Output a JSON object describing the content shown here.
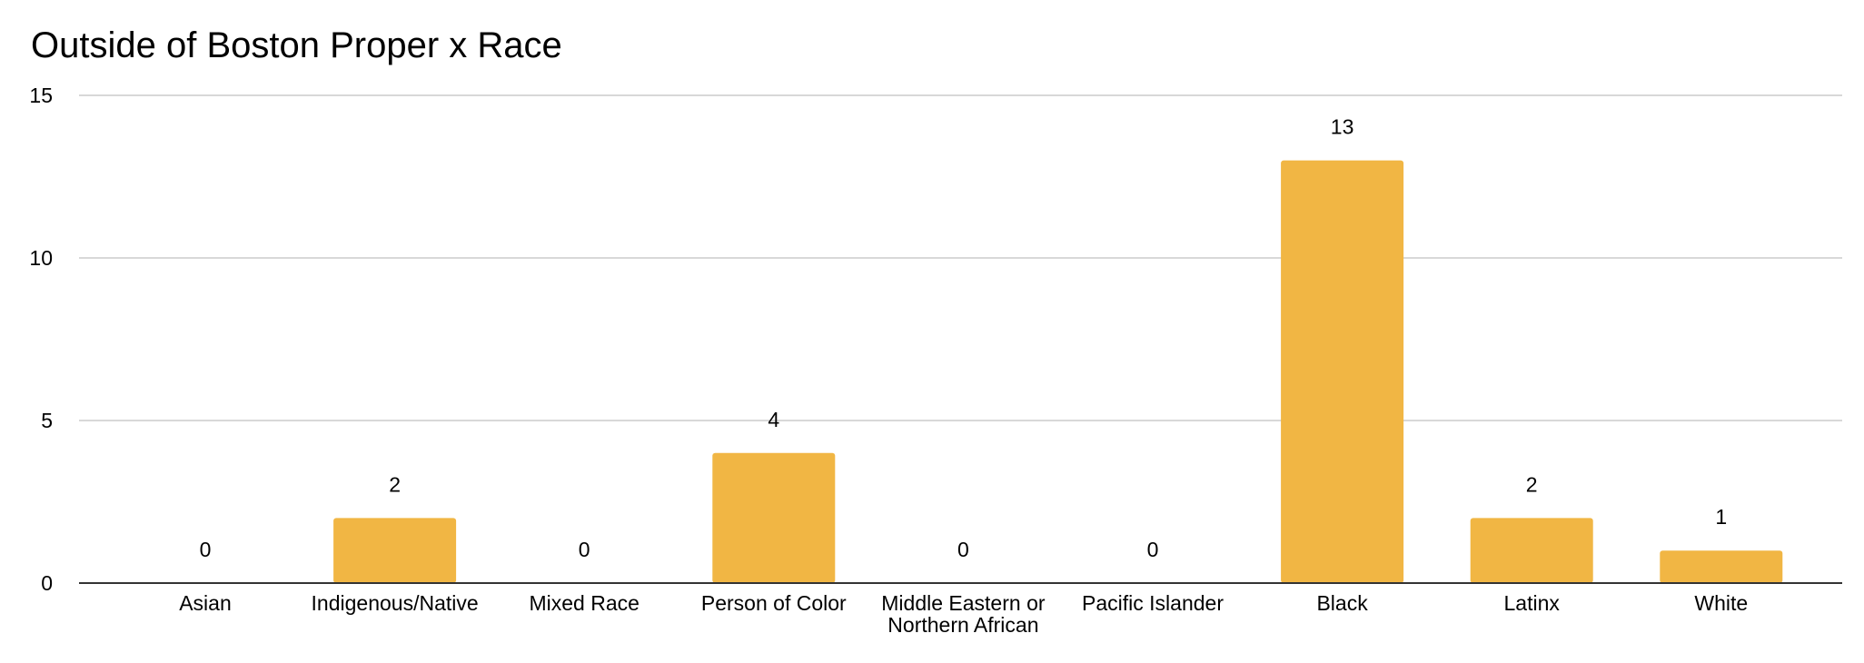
{
  "chart_data": {
    "type": "bar",
    "title": "Outside of Boston Proper x Race",
    "xlabel": "",
    "ylabel": "",
    "categories": [
      "Asian",
      "Indigenous/Native",
      "Mixed Race",
      "Person of Color",
      "Middle Eastern or Northern African",
      "Pacific Islander",
      "Black",
      "Latinx",
      "White"
    ],
    "category_label_lines": [
      [
        "Asian"
      ],
      [
        "Indigenous/Native"
      ],
      [
        "Mixed Race"
      ],
      [
        "Person of Color"
      ],
      [
        "Middle Eastern or",
        "Northern African"
      ],
      [
        "Pacific Islander"
      ],
      [
        "Black"
      ],
      [
        "Latinx"
      ],
      [
        "White"
      ]
    ],
    "values": [
      0,
      2,
      0,
      4,
      0,
      0,
      13,
      2,
      1
    ],
    "data_labels": [
      "0",
      "2",
      "0",
      "4",
      "0",
      "0",
      "13",
      "2",
      "1"
    ],
    "ylim": [
      0,
      15
    ],
    "yticks": [
      0,
      5,
      10,
      15
    ],
    "ytick_labels": [
      "0",
      "5",
      "10",
      "15"
    ],
    "grid": true,
    "legend": "none",
    "bar_color": "#F1B644",
    "grid_color": "#CCCCCC",
    "axis_color": "#333333"
  }
}
